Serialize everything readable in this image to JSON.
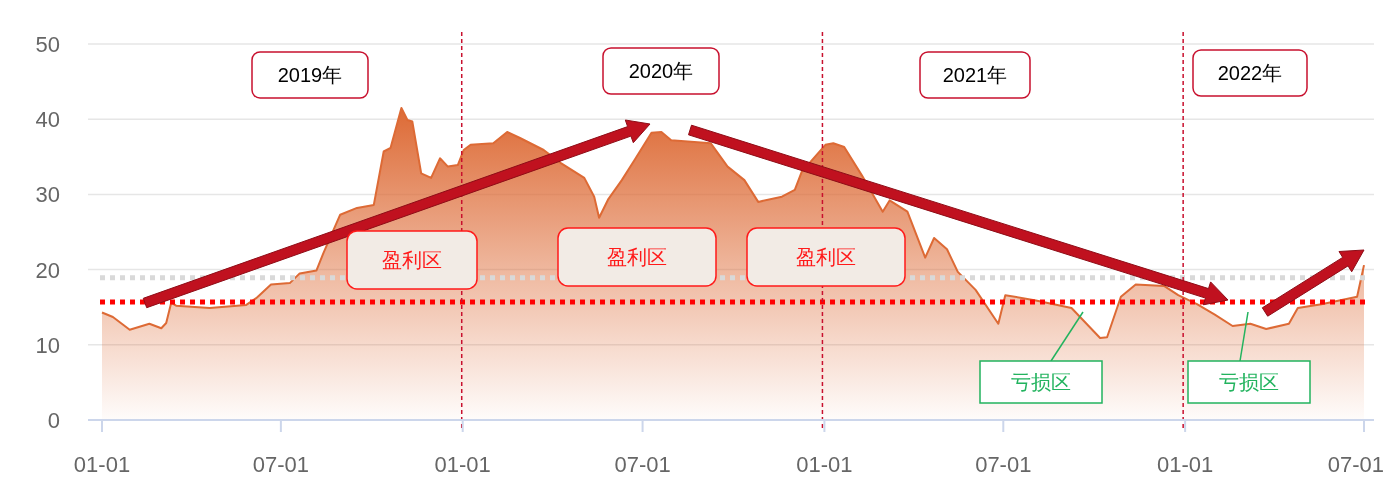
{
  "chart_data": {
    "type": "area",
    "x": [
      "2019-01-01",
      "2019-01-12",
      "2019-01-29",
      "2019-02-18",
      "2019-03-02",
      "2019-03-07",
      "2019-03-12",
      "2019-03-17",
      "2019-04-20",
      "2019-05-27",
      "2019-06-06",
      "2019-06-21",
      "2019-07-10",
      "2019-07-20",
      "2019-08-06",
      "2019-08-13",
      "2019-08-30",
      "2019-09-16",
      "2019-10-03",
      "2019-10-13",
      "2019-10-20",
      "2019-10-31",
      "2019-11-06",
      "2019-11-11",
      "2019-11-20",
      "2019-11-30",
      "2019-12-09",
      "2019-12-17",
      "2019-12-27",
      "2020-01-02",
      "2020-01-09",
      "2020-02-01",
      "2020-02-15",
      "2020-02-28",
      "2020-03-23",
      "2020-04-09",
      "2020-05-03",
      "2020-05-13",
      "2020-05-18",
      "2020-05-27",
      "2020-06-10",
      "2020-06-23",
      "2020-07-10",
      "2020-07-20",
      "2020-07-30",
      "2020-09-08",
      "2020-09-25",
      "2020-10-12",
      "2020-10-26",
      "2020-11-19",
      "2020-12-02",
      "2020-12-09",
      "2021-01-02",
      "2021-01-10",
      "2021-01-21",
      "2021-02-08",
      "2021-03-01",
      "2021-03-08",
      "2021-03-26",
      "2021-04-13",
      "2021-04-22",
      "2021-05-05",
      "2021-05-16",
      "2021-06-03",
      "2021-06-26",
      "2021-07-03",
      "2021-08-03",
      "2021-09-08",
      "2021-10-07",
      "2021-10-14",
      "2021-10-28",
      "2021-11-12",
      "2021-12-11",
      "2021-12-25",
      "2022-01-13",
      "2022-01-31",
      "2022-02-18",
      "2022-03-08",
      "2022-03-24",
      "2022-04-16",
      "2022-04-25",
      "2022-05-19",
      "2022-06-24",
      "2022-07-01"
    ],
    "series": [
      {
        "color": "#dd6a35",
        "values": [
          14.3,
          13.7,
          12.0,
          12.8,
          12.2,
          12.9,
          15.6,
          15.2,
          14.9,
          15.3,
          16.2,
          18.0,
          18.2,
          19.5,
          19.9,
          22.2,
          27.3,
          28.2,
          28.6,
          35.7,
          36.2,
          41.5,
          39.9,
          39.7,
          32.8,
          32.2,
          34.8,
          33.7,
          33.9,
          35.9,
          36.6,
          36.8,
          38.3,
          37.5,
          35.9,
          34.2,
          32.2,
          29.7,
          26.9,
          29.3,
          31.9,
          34.6,
          38.2,
          38.3,
          37.2,
          36.8,
          33.7,
          31.9,
          29.0,
          29.7,
          30.6,
          33.0,
          36.6,
          36.8,
          36.3,
          32.5,
          27.7,
          29.2,
          27.7,
          21.6,
          24.2,
          22.7,
          19.7,
          17.3,
          12.8,
          16.6,
          15.9,
          14.9,
          10.9,
          11.0,
          16.4,
          18.0,
          17.8,
          16.6,
          15.4,
          14.0,
          12.5,
          12.8,
          12.1,
          12.8,
          14.9,
          15.4,
          16.4,
          20.6
        ]
      }
    ],
    "xlim": [
      "2019-01-01",
      "2022-07-01"
    ],
    "xticks": [
      {
        "value": "2019-01-01",
        "label": "01-01"
      },
      {
        "value": "2019-07-01",
        "label": "07-01"
      },
      {
        "value": "2020-01-01",
        "label": "01-01"
      },
      {
        "value": "2020-07-01",
        "label": "07-01"
      },
      {
        "value": "2021-01-01",
        "label": "01-01"
      },
      {
        "value": "2021-07-01",
        "label": "07-01"
      },
      {
        "value": "2022-01-01",
        "label": "01-01"
      },
      {
        "value": "2022-07-01",
        "label": "07-01"
      }
    ],
    "ylim": [
      0,
      50
    ],
    "yticks": [
      0,
      10,
      20,
      30,
      40,
      50
    ],
    "grid": "y",
    "ref_lines": [
      {
        "axis": "y",
        "value": 18.9,
        "color": "#d9d9d9",
        "line_style": "dotted"
      },
      {
        "axis": "y",
        "value": 15.7,
        "color": "#ff0000",
        "line_style": "dotted"
      },
      {
        "axis": "x",
        "value": "2019-12-31",
        "color": "#c8102e",
        "line_style": "dashed"
      },
      {
        "axis": "x",
        "value": "2020-12-30",
        "color": "#c8102e",
        "line_style": "dashed"
      },
      {
        "axis": "x",
        "value": "2021-12-30",
        "color": "#c8102e",
        "line_style": "dashed"
      }
    ],
    "annotations": [
      "2019年",
      "2020年",
      "2021年",
      "2022年",
      "盈利区",
      "盈利区",
      "盈利区",
      "亏损区",
      "亏损区"
    ]
  }
}
